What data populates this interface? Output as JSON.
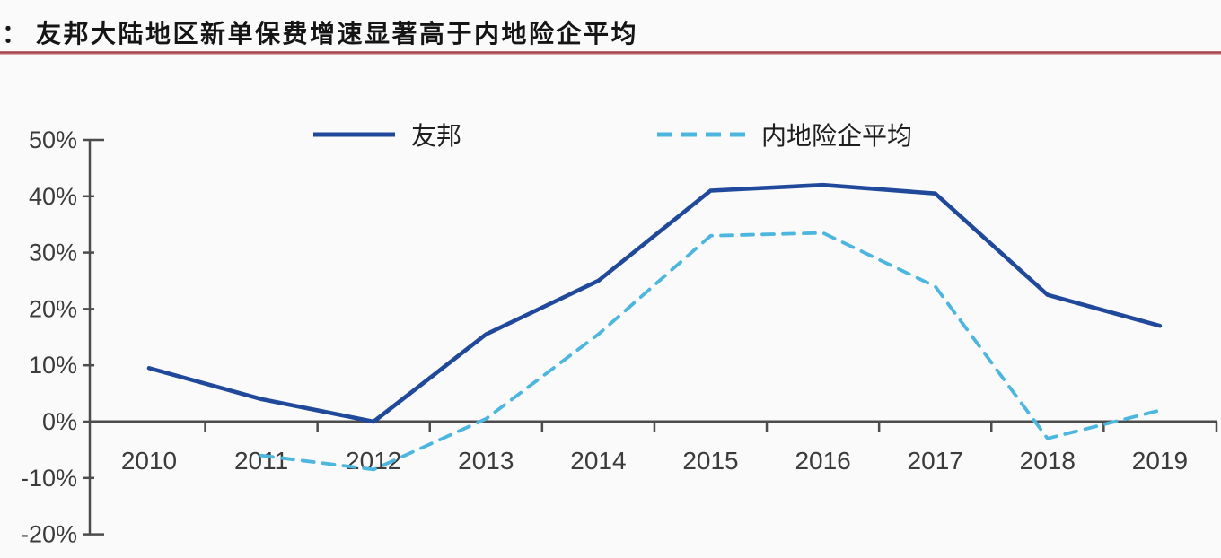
{
  "header": {
    "prefix": "：",
    "title": "友邦大陆地区新单保费增速显著高于内地险企平均",
    "rule_color": "#9c3a41"
  },
  "chart_data": {
    "type": "line",
    "title": "友邦大陆地区新单保费增速显著高于内地险企平均",
    "x": [
      2010,
      2011,
      2012,
      2013,
      2014,
      2015,
      2016,
      2017,
      2018,
      2019
    ],
    "series": [
      {
        "name": "友邦",
        "style": "solid",
        "color": "#20499b",
        "values": [
          9.5,
          4,
          0,
          15.5,
          25,
          41,
          42,
          40.5,
          22.5,
          17
        ]
      },
      {
        "name": "内地险企平均",
        "style": "dashed",
        "color": "#4db6de",
        "values": [
          null,
          -6,
          -8.5,
          0.5,
          15.5,
          33,
          33.5,
          24,
          -3,
          2
        ]
      }
    ],
    "ylim": [
      -20,
      50
    ],
    "ytick_step": 10,
    "ytick_labels": [
      "50%",
      "40%",
      "30%",
      "20%",
      "10%",
      "0%",
      "-10%",
      "-20%"
    ],
    "unit": "%",
    "grid": false,
    "legend_position": "top",
    "axis_color": "#4c4c4c",
    "label_color": "#3b3b3b"
  }
}
